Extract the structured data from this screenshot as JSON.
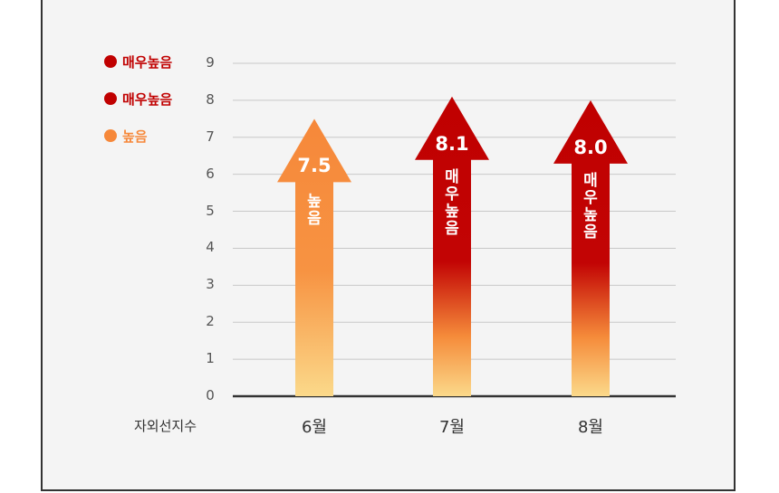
{
  "chart_data": {
    "type": "bar",
    "categories": [
      "6월",
      "7월",
      "8월"
    ],
    "values": [
      7.5,
      8.1,
      8.0
    ],
    "value_labels": [
      "7.5",
      "8.1",
      "8.0"
    ],
    "status_labels": [
      "높음",
      "매우높음",
      "매우높음"
    ],
    "xlabel": "자외선지수",
    "ylim": [
      0,
      9
    ],
    "yticks": [
      "0",
      "1",
      "2",
      "3",
      "4",
      "5",
      "6",
      "7",
      "8",
      "9"
    ],
    "legend": [
      {
        "label": "매우높음",
        "color": "#c00000"
      },
      {
        "label": "매우높음",
        "color": "#c00000"
      },
      {
        "label": "높음",
        "color": "#f6883a"
      }
    ],
    "legend_position": "top-left",
    "grid": true,
    "colors": {
      "high": "#f6883a",
      "very_high": "#c00000",
      "base": "#fbd98a"
    }
  }
}
